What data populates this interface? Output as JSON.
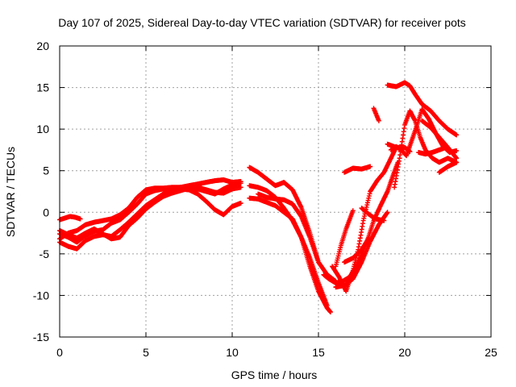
{
  "chart_data": {
    "type": "scatter",
    "title": "Day 107 of 2025, Sidereal Day-to-day VTEC variation (SDTVAR) for receiver pots",
    "xlabel": "GPS time / hours",
    "ylabel": "SDTVAR / TECUs",
    "xlim": [
      0,
      25
    ],
    "ylim": [
      -15,
      20
    ],
    "xticks": [
      0,
      5,
      10,
      15,
      20,
      25
    ],
    "yticks": [
      -15,
      -10,
      -5,
      0,
      5,
      10,
      15,
      20
    ],
    "grid": true,
    "marker": "+",
    "color": "#ff0000",
    "series": [
      {
        "x": [
          0.0,
          0.3,
          0.6,
          0.9,
          1.2
        ],
        "y": [
          -0.9,
          -0.7,
          -0.5,
          -0.6,
          -0.8
        ]
      },
      {
        "x": [
          0.0,
          0.5,
          1.0,
          1.5,
          2.0,
          2.5,
          3.0,
          3.5,
          4.0,
          4.5,
          5.0,
          5.5,
          6.0,
          6.5,
          7.0,
          7.5,
          8.0,
          8.5,
          9.0,
          9.5,
          10.0,
          10.5
        ],
        "y": [
          -3.2,
          -2.5,
          -2.2,
          -1.5,
          -1.2,
          -1.0,
          -0.8,
          -0.3,
          0.5,
          1.8,
          2.7,
          2.9,
          2.9,
          3.0,
          3.0,
          3.2,
          3.4,
          3.6,
          3.8,
          3.9,
          3.6,
          3.7
        ]
      },
      {
        "x": [
          0.0,
          0.5,
          1.0,
          1.5,
          2.0,
          2.5,
          3.0,
          3.5,
          4.0,
          4.5,
          5.0,
          5.5,
          6.0,
          6.5,
          7.0,
          7.5,
          8.0,
          8.5,
          9.0,
          9.5,
          10.0,
          10.5
        ],
        "y": [
          -2.6,
          -3.0,
          -3.6,
          -2.8,
          -2.3,
          -2.1,
          -1.3,
          -0.9,
          0.0,
          1.0,
          2.2,
          2.6,
          2.8,
          2.9,
          3.0,
          3.1,
          2.8,
          2.5,
          2.2,
          2.8,
          3.3,
          3.5
        ]
      },
      {
        "x": [
          0.0,
          0.5,
          1.0,
          1.5,
          2.0,
          2.5,
          3.0,
          3.5,
          4.0,
          4.5,
          5.0,
          5.5,
          6.0,
          6.5,
          7.0,
          7.5,
          8.0,
          8.5,
          9.0,
          9.5,
          10.0,
          10.5
        ],
        "y": [
          -3.6,
          -4.1,
          -4.4,
          -3.4,
          -2.9,
          -2.7,
          -2.9,
          -2.1,
          -1.2,
          -0.2,
          0.8,
          1.5,
          2.2,
          2.6,
          2.8,
          2.7,
          2.2,
          1.3,
          0.3,
          -0.3,
          0.7,
          1.1
        ]
      },
      {
        "x": [
          0.0,
          0.5,
          1.0,
          1.5,
          2.0,
          2.5,
          3.0,
          3.5,
          4.0,
          4.5,
          5.0,
          5.5,
          6.0,
          6.5,
          7.0,
          7.5,
          8.0,
          8.5,
          9.0,
          9.5,
          10.0,
          10.5
        ],
        "y": [
          -2.2,
          -2.7,
          -3.1,
          -2.5,
          -2.0,
          -2.6,
          -3.2,
          -3.0,
          -1.6,
          -0.7,
          0.4,
          1.2,
          1.9,
          2.3,
          2.6,
          2.9,
          3.0,
          2.7,
          2.4,
          2.3,
          2.8,
          3.0
        ]
      },
      {
        "x": [
          11.0,
          11.5,
          12.0,
          12.5,
          13.0,
          13.5,
          14.0,
          14.5,
          15.0,
          15.5,
          16.0
        ],
        "y": [
          5.4,
          4.8,
          4.0,
          3.2,
          3.6,
          2.7,
          0.6,
          -2.5,
          -6.0,
          -7.5,
          -8.3
        ]
      },
      {
        "x": [
          11.0,
          11.5,
          12.0,
          12.5,
          13.0,
          13.5,
          14.0,
          14.5,
          15.0,
          15.5
        ],
        "y": [
          3.2,
          3.0,
          2.6,
          1.8,
          0.5,
          -1.0,
          -3.0,
          -5.5,
          -8.5,
          -11.2
        ]
      },
      {
        "x": [
          11.0,
          11.5,
          12.0,
          12.5,
          13.0,
          13.5,
          14.0,
          14.5,
          15.0,
          15.5,
          15.7
        ],
        "y": [
          1.7,
          1.6,
          1.2,
          0.8,
          0.0,
          -0.8,
          -3.0,
          -6.5,
          -9.5,
          -11.5,
          -12.0
        ]
      },
      {
        "x": [
          11.5,
          12.0,
          12.5,
          13.0,
          13.5,
          14.0,
          14.5,
          15.0
        ],
        "y": [
          2.2,
          1.8,
          1.6,
          1.5,
          1.0,
          -0.5,
          -3.0,
          -6.0
        ]
      },
      {
        "x": [
          15.3,
          15.6,
          16.0,
          16.4,
          16.8,
          17.2,
          17.5,
          17.9,
          18.2,
          18.6,
          19.0,
          19.3,
          19.6
        ],
        "y": [
          -7.5,
          -8.0,
          -8.5,
          -8.3,
          -7.8,
          -6.5,
          -5.0,
          -3.0,
          -1.0,
          0.8,
          2.5,
          4.3,
          6.0
        ]
      },
      {
        "x": [
          15.8,
          16.2,
          16.6,
          17.0,
          17.3,
          17.6,
          18.0,
          18.4,
          18.8,
          19.2,
          19.5
        ],
        "y": [
          -6.5,
          -7.8,
          -9.5,
          -7.0,
          -4.5,
          -1.0,
          2.5,
          3.8,
          4.8,
          6.5,
          7.8
        ]
      },
      {
        "x": [
          16.0,
          16.3,
          16.6,
          17.0
        ],
        "y": [
          -6.5,
          -4.0,
          -2.0,
          0.2
        ]
      },
      {
        "x": [
          16.0,
          16.5,
          17.0,
          17.5,
          18.0,
          18.5,
          19.0
        ],
        "y": [
          -9.0,
          -8.8,
          -8.0,
          -6.0,
          -3.5,
          -1.5,
          0.0
        ]
      },
      {
        "x": [
          16.5,
          17.0,
          17.5,
          17.8
        ],
        "y": [
          -6.0,
          -5.5,
          -4.5,
          -3.5
        ]
      },
      {
        "x": [
          17.5,
          17.9,
          18.3,
          18.8
        ],
        "y": [
          0.5,
          -0.2,
          -0.8,
          -1.0
        ]
      },
      {
        "x": [
          16.5,
          17.0,
          17.5,
          18.0
        ],
        "y": [
          4.8,
          5.3,
          5.2,
          5.5
        ]
      },
      {
        "x": [
          18.2,
          18.5
        ],
        "y": [
          12.5,
          11.0
        ]
      },
      {
        "x": [
          19.0,
          19.5,
          20.0,
          20.3,
          20.6,
          21.0,
          21.5,
          22.0,
          22.5,
          23.0
        ],
        "y": [
          15.3,
          15.1,
          15.6,
          15.2,
          14.2,
          13.0,
          12.2,
          11.0,
          10.0,
          9.3
        ]
      },
      {
        "x": [
          19.4,
          19.7,
          20.0,
          20.3,
          20.6,
          20.9,
          21.2,
          21.6,
          22.0,
          22.5,
          23.0
        ],
        "y": [
          3.0,
          6.5,
          10.5,
          12.2,
          11.0,
          9.0,
          7.5,
          6.5,
          6.0,
          6.5,
          6.0
        ]
      },
      {
        "x": [
          19.2,
          19.5,
          19.8,
          20.1,
          20.4,
          20.7,
          21.0,
          21.4,
          21.8,
          22.2,
          22.6,
          23.0
        ],
        "y": [
          7.5,
          7.9,
          7.5,
          6.8,
          8.6,
          10.4,
          12.4,
          11.2,
          9.5,
          8.0,
          7.2,
          7.4
        ]
      },
      {
        "x": [
          19.0,
          19.5,
          20.0,
          20.3
        ],
        "y": [
          8.2,
          7.8,
          7.8,
          7.3
        ]
      },
      {
        "x": [
          20.8,
          21.2,
          21.6,
          22.0,
          22.4
        ],
        "y": [
          7.2,
          7.0,
          7.2,
          7.5,
          7.8
        ]
      },
      {
        "x": [
          21.0,
          21.5,
          22.0,
          22.5,
          23.0
        ],
        "y": [
          11.0,
          10.2,
          9.0,
          7.8,
          6.5
        ]
      },
      {
        "x": [
          22.0,
          22.5,
          23.0
        ],
        "y": [
          4.8,
          5.5,
          6.0
        ]
      }
    ]
  }
}
